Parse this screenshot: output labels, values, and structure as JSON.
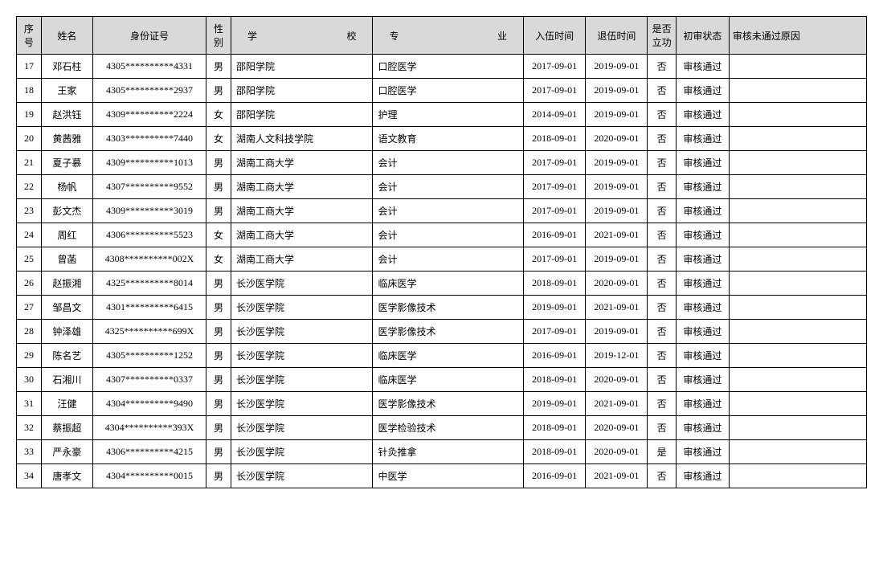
{
  "table": {
    "columns": [
      {
        "key": "seq",
        "label": "序号",
        "class": "col-seq"
      },
      {
        "key": "name",
        "label": "姓名",
        "class": "col-name"
      },
      {
        "key": "id",
        "label": "身份证号",
        "class": "col-id"
      },
      {
        "key": "gender",
        "label": "性别",
        "class": "col-gender"
      },
      {
        "key": "school",
        "label": "学　　校",
        "class": "col-school"
      },
      {
        "key": "major",
        "label": "专　　业",
        "class": "col-major"
      },
      {
        "key": "enlist",
        "label": "入伍时间",
        "class": "col-enlist"
      },
      {
        "key": "retire",
        "label": "退伍时间",
        "class": "col-retire"
      },
      {
        "key": "merit",
        "label": "是否立功",
        "class": "col-merit"
      },
      {
        "key": "status",
        "label": "初审状态",
        "class": "col-status"
      },
      {
        "key": "reason",
        "label": "审核未通过原因",
        "class": "col-reason"
      }
    ],
    "rows": [
      {
        "seq": "17",
        "name": "邓石柱",
        "id": "4305**********4331",
        "gender": "男",
        "school": "邵阳学院",
        "major": "口腔医学",
        "enlist": "2017-09-01",
        "retire": "2019-09-01",
        "merit": "否",
        "status": "审核通过",
        "reason": ""
      },
      {
        "seq": "18",
        "name": "王家",
        "id": "4305**********2937",
        "gender": "男",
        "school": "邵阳学院",
        "major": "口腔医学",
        "enlist": "2017-09-01",
        "retire": "2019-09-01",
        "merit": "否",
        "status": "审核通过",
        "reason": ""
      },
      {
        "seq": "19",
        "name": "赵洪钰",
        "id": "4309**********2224",
        "gender": "女",
        "school": "邵阳学院",
        "major": "护理",
        "enlist": "2014-09-01",
        "retire": "2019-09-01",
        "merit": "否",
        "status": "审核通过",
        "reason": ""
      },
      {
        "seq": "20",
        "name": "黄茜雅",
        "id": "4303**********7440",
        "gender": "女",
        "school": "湖南人文科技学院",
        "major": "语文教育",
        "enlist": "2018-09-01",
        "retire": "2020-09-01",
        "merit": "否",
        "status": "审核通过",
        "reason": ""
      },
      {
        "seq": "21",
        "name": "夏子慕",
        "id": "4309**********1013",
        "gender": "男",
        "school": "湖南工商大学",
        "major": "会计",
        "enlist": "2017-09-01",
        "retire": "2019-09-01",
        "merit": "否",
        "status": "审核通过",
        "reason": ""
      },
      {
        "seq": "22",
        "name": "杨帆",
        "id": "4307**********9552",
        "gender": "男",
        "school": "湖南工商大学",
        "major": "会计",
        "enlist": "2017-09-01",
        "retire": "2019-09-01",
        "merit": "否",
        "status": "审核通过",
        "reason": ""
      },
      {
        "seq": "23",
        "name": "彭文杰",
        "id": "4309**********3019",
        "gender": "男",
        "school": "湖南工商大学",
        "major": "会计",
        "enlist": "2017-09-01",
        "retire": "2019-09-01",
        "merit": "否",
        "status": "审核通过",
        "reason": ""
      },
      {
        "seq": "24",
        "name": "周红",
        "id": "4306**********5523",
        "gender": "女",
        "school": "湖南工商大学",
        "major": "会计",
        "enlist": "2016-09-01",
        "retire": "2021-09-01",
        "merit": "否",
        "status": "审核通过",
        "reason": ""
      },
      {
        "seq": "25",
        "name": "曾菡",
        "id": "4308**********002X",
        "gender": "女",
        "school": "湖南工商大学",
        "major": "会计",
        "enlist": "2017-09-01",
        "retire": "2019-09-01",
        "merit": "否",
        "status": "审核通过",
        "reason": ""
      },
      {
        "seq": "26",
        "name": "赵振湘",
        "id": "4325**********8014",
        "gender": "男",
        "school": "长沙医学院",
        "major": "临床医学",
        "enlist": "2018-09-01",
        "retire": "2020-09-01",
        "merit": "否",
        "status": "审核通过",
        "reason": ""
      },
      {
        "seq": "27",
        "name": "邹昌文",
        "id": "4301**********6415",
        "gender": "男",
        "school": "长沙医学院",
        "major": "医学影像技术",
        "enlist": "2019-09-01",
        "retire": "2021-09-01",
        "merit": "否",
        "status": "审核通过",
        "reason": ""
      },
      {
        "seq": "28",
        "name": "钟泽雄",
        "id": "4325**********699X",
        "gender": "男",
        "school": "长沙医学院",
        "major": "医学影像技术",
        "enlist": "2017-09-01",
        "retire": "2019-09-01",
        "merit": "否",
        "status": "审核通过",
        "reason": ""
      },
      {
        "seq": "29",
        "name": "陈名艺",
        "id": "4305**********1252",
        "gender": "男",
        "school": "长沙医学院",
        "major": "临床医学",
        "enlist": "2016-09-01",
        "retire": "2019-12-01",
        "merit": "否",
        "status": "审核通过",
        "reason": ""
      },
      {
        "seq": "30",
        "name": "石湘川",
        "id": "4307**********0337",
        "gender": "男",
        "school": "长沙医学院",
        "major": "临床医学",
        "enlist": "2018-09-01",
        "retire": "2020-09-01",
        "merit": "否",
        "status": "审核通过",
        "reason": ""
      },
      {
        "seq": "31",
        "name": "汪健",
        "id": "4304**********9490",
        "gender": "男",
        "school": "长沙医学院",
        "major": "医学影像技术",
        "enlist": "2019-09-01",
        "retire": "2021-09-01",
        "merit": "否",
        "status": "审核通过",
        "reason": ""
      },
      {
        "seq": "32",
        "name": "蔡振超",
        "id": "4304**********393X",
        "gender": "男",
        "school": "长沙医学院",
        "major": "医学检验技术",
        "enlist": "2018-09-01",
        "retire": "2020-09-01",
        "merit": "否",
        "status": "审核通过",
        "reason": ""
      },
      {
        "seq": "33",
        "name": "严永豪",
        "id": "4306**********4215",
        "gender": "男",
        "school": "长沙医学院",
        "major": "针灸推拿",
        "enlist": "2018-09-01",
        "retire": "2020-09-01",
        "merit": "是",
        "status": "审核通过",
        "reason": ""
      },
      {
        "seq": "34",
        "name": "唐孝文",
        "id": "4304**********0015",
        "gender": "男",
        "school": "长沙医学院",
        "major": "中医学",
        "enlist": "2016-09-01",
        "retire": "2021-09-01",
        "merit": "否",
        "status": "审核通过",
        "reason": ""
      }
    ],
    "header_bg": "#d9d9d9",
    "border_color": "#000000",
    "font_size_pt": 9
  }
}
